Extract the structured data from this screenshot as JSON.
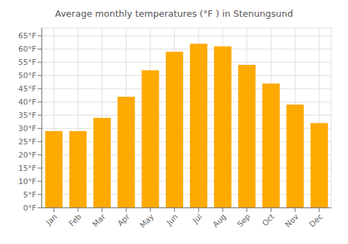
{
  "chart_data": {
    "type": "bar",
    "title": "Average monthly temperatures (°F ) in Stenungsund",
    "categories": [
      "Jan",
      "Feb",
      "Mar",
      "Apr",
      "May",
      "Jun",
      "Jul",
      "Aug",
      "Sep",
      "Oct",
      "Nov",
      "Dec"
    ],
    "values": [
      29,
      29,
      34,
      42,
      52,
      59,
      62,
      61,
      54,
      47,
      39,
      32
    ],
    "color": "#FFAA00",
    "ylim": [
      0,
      68
    ],
    "yticks": [
      {
        "value": 0,
        "label": "0°F"
      },
      {
        "value": 5,
        "label": "5°F"
      },
      {
        "value": 10,
        "label": "10°F"
      },
      {
        "value": 15,
        "label": "15°F"
      },
      {
        "value": 20,
        "label": "20°F"
      },
      {
        "value": 25,
        "label": "25°F"
      },
      {
        "value": 30,
        "label": "30°F"
      },
      {
        "value": 35,
        "label": "35°F"
      },
      {
        "value": 40,
        "label": "40°F"
      },
      {
        "value": 45,
        "label": "45°F"
      },
      {
        "value": 50,
        "label": "50°F"
      },
      {
        "value": 55,
        "label": "55°F"
      },
      {
        "value": 60,
        "label": "60°F"
      },
      {
        "value": 65,
        "label": "65°F"
      }
    ],
    "grid": true
  }
}
